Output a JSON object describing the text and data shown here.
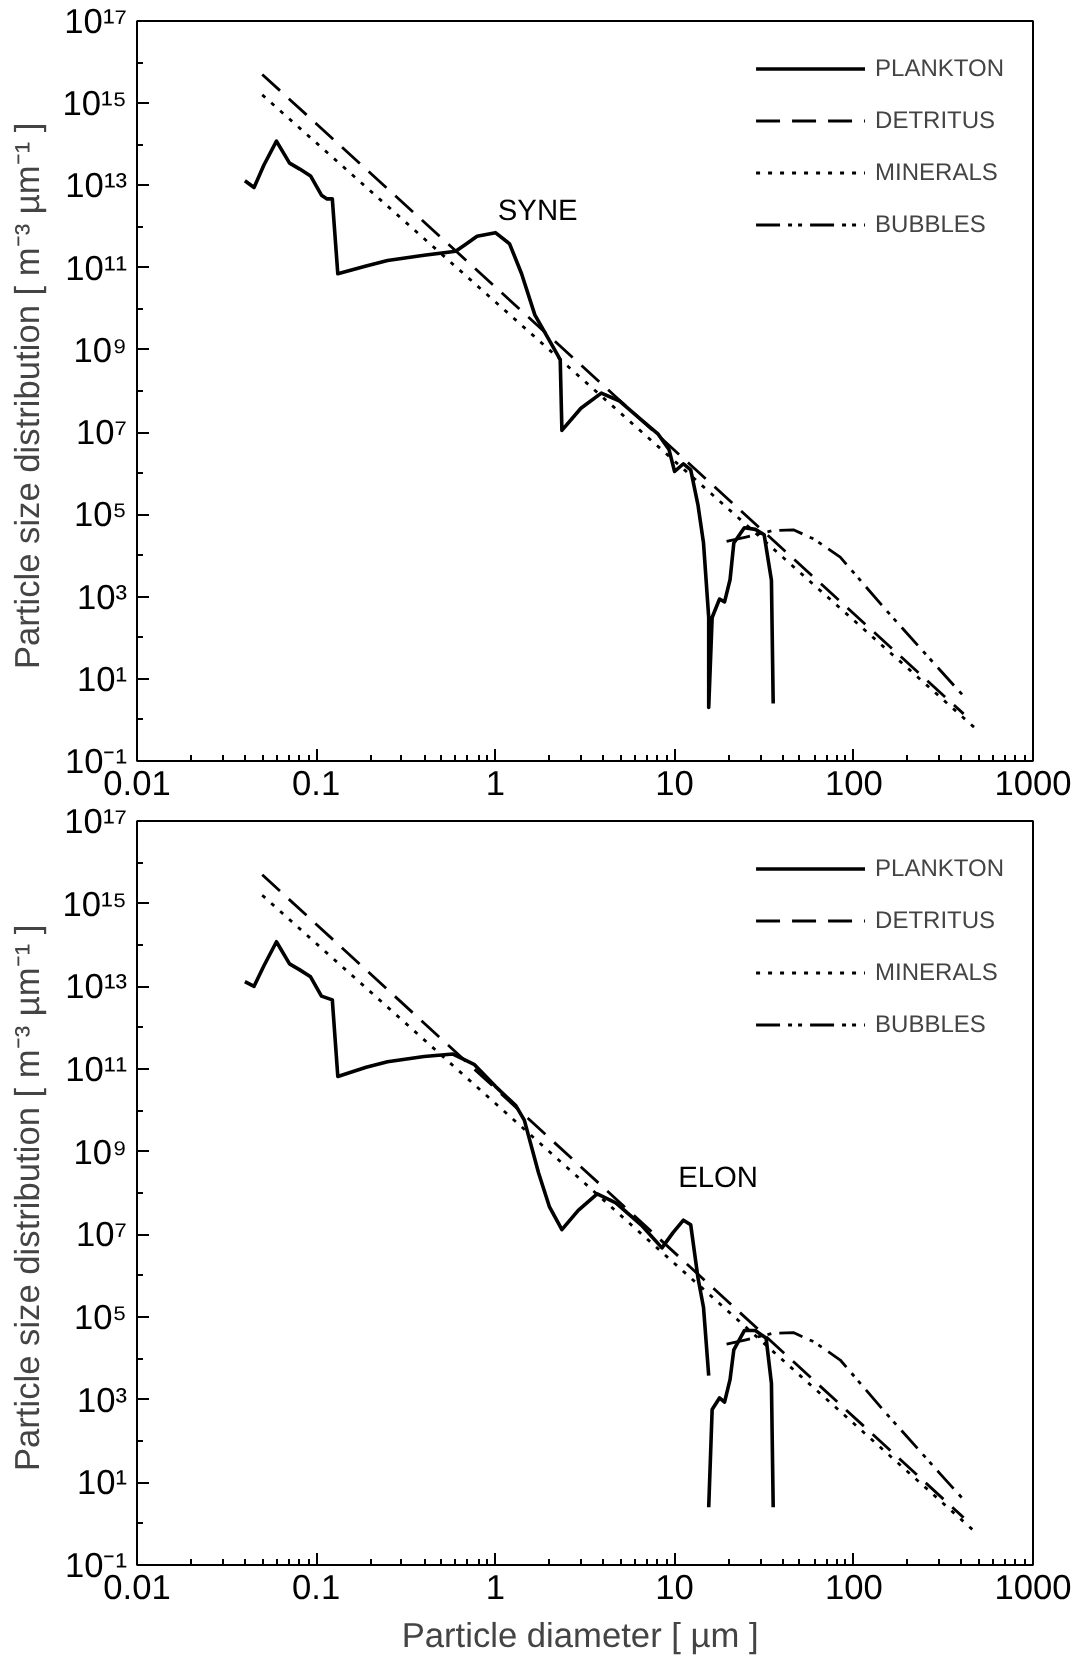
{
  "chart_data": [
    {
      "type": "line",
      "ylabel": "Particle size distribution  [ m⁻³ µm⁻¹ ]",
      "log": "xy",
      "legend": "top right",
      "grid": false,
      "xlim": [
        0.01,
        1000
      ],
      "ylim": [
        0.1,
        1e+17
      ],
      "xticks": [
        0.01,
        0.1,
        1,
        10,
        100,
        1000
      ],
      "yticks": [
        {
          "value": 0.1,
          "label": "10⁻¹"
        },
        {
          "value": 10,
          "label": "10¹"
        },
        {
          "value": 1000,
          "label": "10³"
        },
        {
          "value": 100000.0,
          "label": "10⁵"
        },
        {
          "value": 10000000.0,
          "label": "10⁷"
        },
        {
          "value": 1000000000.0,
          "label": "10⁹"
        },
        {
          "value": 100000000000.0,
          "label": "10¹¹"
        },
        {
          "value": 10000000000000.0,
          "label": "10¹³"
        },
        {
          "value": 1000000000000000.0,
          "label": "10¹⁵"
        },
        {
          "value": 1e+17,
          "label": "10¹⁷"
        }
      ],
      "annotations": [
        "SYNE"
      ],
      "series": [
        {
          "name": "PLANKTON",
          "color": "#000000",
          "line_style": "solid",
          "x": [
            0.04,
            0.045,
            0.051,
            0.06,
            0.071,
            0.081,
            0.093,
            0.107,
            0.115,
            0.123,
            0.132,
            0.19,
            0.25,
            0.4,
            0.6,
            0.69,
            0.79,
            1.0,
            1.2,
            1.4,
            1.66,
            2.0,
            2.3,
            2.35,
            3.0,
            3.9,
            4.9,
            6.5,
            8.1,
            9.3,
            10,
            11.2,
            12.3,
            13.5,
            14.5,
            15.5,
            15.5,
            16.2,
            17.8,
            19,
            20.4,
            21.4,
            24.5,
            28.2,
            31.6,
            34.7,
            35.5
          ],
          "values": [
            13000000000000.0,
            8900000000000.0,
            31000000000000.0,
            120000000000000.0,
            35000000000000.0,
            25000000000000.0,
            17000000000000.0,
            5800000000000.0,
            4700000000000.0,
            4700000000000.0,
            71000000000.0,
            110000000000.0,
            150000000000.0,
            200000000000.0,
            250000000000.0,
            380000000000.0,
            580000000000.0,
            710000000000.0,
            380000000000.0,
            71000000000.0,
            7100000000.0,
            1700000000.0,
            580000000.0,
            11000000.0,
            38000000.0,
            89000000.0,
            58000000.0,
            20000000.0,
            8900000.0,
            3800000.0,
            1100000.0,
            1700000.0,
            1200000.0,
            170000.0,
            20000.0,
            310.0,
            2.0,
            310.0,
            870.0,
            740.0,
            2600.0,
            20000.0,
            47000.0,
            43000.0,
            32000.0,
            2500.0,
            2.5
          ]
        },
        {
          "name": "DETRITUS",
          "color": "#000000",
          "line_style": "dashed",
          "x": [
            0.05,
            410
          ],
          "values": [
            5000000000000000.0,
            1.4
          ]
        },
        {
          "name": "MINERALS",
          "color": "#000000",
          "line_style": "dotted",
          "x": [
            0.05,
            470
          ],
          "values": [
            1600000000000000.0,
            0.66
          ]
        },
        {
          "name": "BUBBLES",
          "color": "#000000",
          "line_style": "dashdot",
          "x": [
            19.5,
            25,
            35,
            46,
            60,
            84,
            150,
            300,
            410
          ],
          "values": [
            22000.0,
            28000.0,
            40000.0,
            42000.0,
            25000.0,
            9100.0,
            490.0,
            17,
            3.8
          ]
        }
      ]
    },
    {
      "type": "line",
      "ylabel": "Particle size distribution  [ m⁻³ µm⁻¹ ]",
      "xlabel": "Particle diameter  [ µm ]",
      "log": "xy",
      "legend": "top right",
      "grid": false,
      "xlim": [
        0.01,
        1000
      ],
      "ylim": [
        0.1,
        1e+17
      ],
      "xticks": [
        0.01,
        0.1,
        1,
        10,
        100,
        1000
      ],
      "yticks": [
        {
          "value": 0.1,
          "label": "10⁻¹"
        },
        {
          "value": 10,
          "label": "10¹"
        },
        {
          "value": 1000,
          "label": "10³"
        },
        {
          "value": 100000.0,
          "label": "10⁵"
        },
        {
          "value": 10000000.0,
          "label": "10⁷"
        },
        {
          "value": 1000000000.0,
          "label": "10⁹"
        },
        {
          "value": 100000000000.0,
          "label": "10¹¹"
        },
        {
          "value": 10000000000000.0,
          "label": "10¹³"
        },
        {
          "value": 1000000000000000.0,
          "label": "10¹⁵"
        },
        {
          "value": 1e+17,
          "label": "10¹⁷"
        }
      ],
      "annotations": [
        "ELON"
      ],
      "series": [
        {
          "name": "PLANKTON",
          "color": "#000000",
          "line_style": "solid",
          "x": [
            0.04,
            0.045,
            0.051,
            0.06,
            0.071,
            0.081,
            0.093,
            0.107,
            0.123,
            0.132,
            0.19,
            0.25,
            0.4,
            0.58,
            0.76,
            1.0,
            1.3,
            1.45,
            1.74,
            2.0,
            2.35,
            2.9,
            3.7,
            4.7,
            6.5,
            8.5,
            9.8,
            11.2,
            12.3,
            13.5,
            14.5,
            15.5,
            null,
            15.5,
            16.2,
            17.8,
            19,
            20.4,
            21.4,
            24.5,
            28.2,
            32.4,
            34.7,
            35.5
          ],
          "values": [
            13000000000000.0,
            10000000000000.0,
            31000000000000.0,
            120000000000000.0,
            35000000000000.0,
            25000000000000.0,
            17000000000000.0,
            5800000000000.0,
            4700000000000.0,
            66000000000.0,
            110000000000.0,
            150000000000.0,
            200000000000.0,
            230000000000.0,
            130000000000.0,
            38000000000.0,
            13000000000.0,
            5800000000.0,
            310000000.0,
            47000000.0,
            13000000.0,
            38000000.0,
            95000000.0,
            58000000.0,
            17000000.0,
            4700000.0,
            11000000.0,
            22000000.0,
            17000000.0,
            890000.0,
            170000.0,
            3800.0,
            null,
            2.5,
            580.0,
            1100.0,
            870.0,
            3100.0,
            16000.0,
            47000.0,
            47000.0,
            31000.0,
            2500.0,
            2.5
          ]
        },
        {
          "name": "DETRITUS",
          "color": "#000000",
          "line_style": "dashed",
          "x": [
            0.05,
            410
          ],
          "values": [
            5000000000000000.0,
            1.4
          ]
        },
        {
          "name": "MINERALS",
          "color": "#000000",
          "line_style": "dotted",
          "x": [
            0.05,
            470
          ],
          "values": [
            1600000000000000.0,
            0.66
          ]
        },
        {
          "name": "BUBBLES",
          "color": "#000000",
          "line_style": "dashdot",
          "x": [
            19.5,
            25,
            35,
            46,
            60,
            84,
            150,
            300,
            410
          ],
          "values": [
            22000.0,
            28000.0,
            40000.0,
            42000.0,
            25000.0,
            9100.0,
            490.0,
            17,
            3.8
          ]
        }
      ]
    }
  ]
}
